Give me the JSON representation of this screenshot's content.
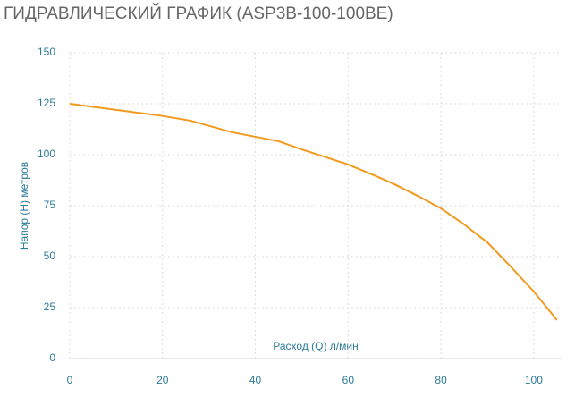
{
  "chart_data": {
    "type": "line",
    "title": "ГИДРАВЛИЧЕСКИЙ ГРАФИК (ASP3B-100-100BE)",
    "x_label": "Расход (Q) л/мин",
    "y_label": "Напор (H) метров",
    "x": [
      0,
      10,
      20,
      26,
      35,
      40,
      45,
      50,
      60,
      66,
      70,
      75,
      80,
      85,
      90,
      95,
      100,
      105
    ],
    "series": [
      {
        "name": "ASP3B-100-100BE",
        "color": "#f39a1e",
        "values": [
          125,
          122,
          119,
          116.7,
          111,
          108.8,
          106.6,
          102.6,
          95.2,
          89.5,
          85.5,
          79.8,
          73.7,
          65.8,
          57,
          45.2,
          32.9,
          18.9
        ]
      }
    ],
    "xlim": [
      0,
      106
    ],
    "xticks": [
      0,
      20,
      40,
      60,
      80,
      100
    ],
    "ylim": [
      0,
      150
    ],
    "yticks": [
      0,
      25,
      50,
      75,
      100,
      125,
      150
    ],
    "grid": true
  }
}
